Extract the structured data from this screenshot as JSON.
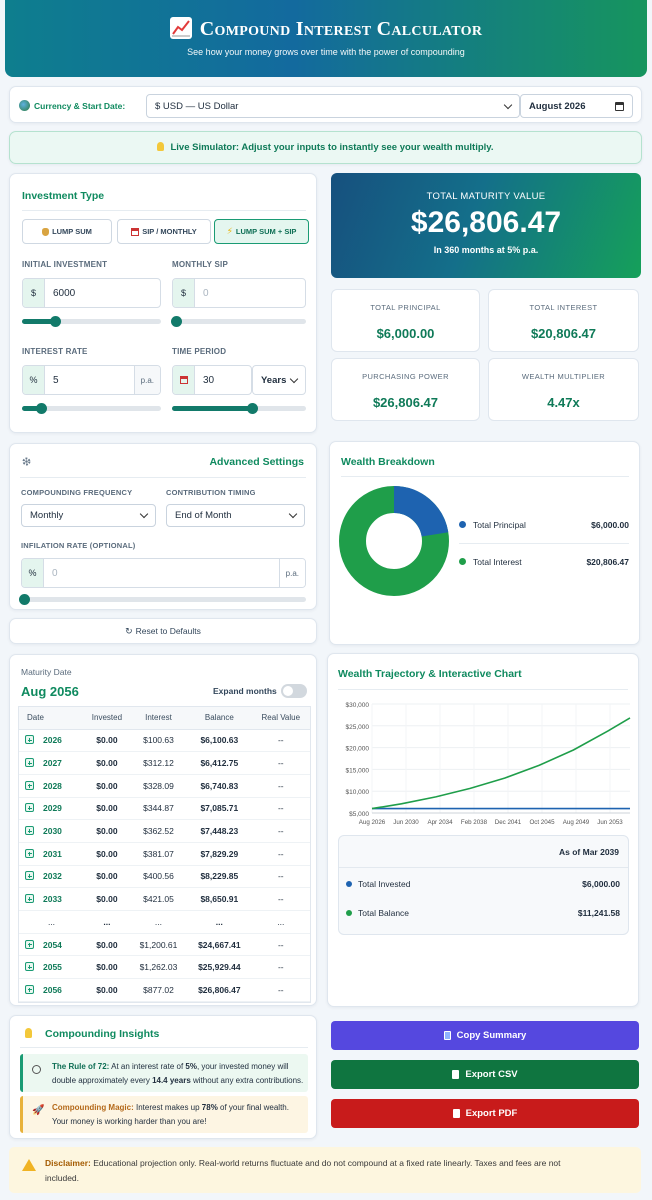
{
  "header": {
    "title": "Compound Interest Calculator",
    "subtitle": "See how your money grows over time with the power of compounding"
  },
  "settings_bar": {
    "label": "Currency & Start Date:",
    "currency": "$ USD — US Dollar",
    "start_date": "August 2026"
  },
  "banner": {
    "strong": "Live Simulator:",
    "text": " Adjust your inputs to instantly see your wealth multiply."
  },
  "investment": {
    "title": "Investment Type",
    "types": [
      {
        "label": "LUMP SUM"
      },
      {
        "label": "SIP / MONTHLY"
      },
      {
        "label": "LUMP SUM + SIP"
      }
    ],
    "initial_label": "INITIAL INVESTMENT",
    "initial_prefix": "$",
    "initial_value": "6000",
    "initial_slider": 0.24,
    "sip_label": "MONTHLY SIP",
    "sip_prefix": "$",
    "sip_placeholder": "0",
    "sip_slider": 0.03,
    "rate_label": "INTEREST RATE",
    "rate_prefix": "%",
    "rate_value": "5",
    "rate_suffix": "p.a.",
    "rate_slider": 0.14,
    "period_label": "TIME PERIOD",
    "period_value": "30",
    "period_unit": "Years",
    "period_slider": 0.6
  },
  "advanced": {
    "title": "Advanced Settings",
    "freq_label": "COMPOUNDING FREQUENCY",
    "freq_value": "Monthly",
    "timing_label": "CONTRIBUTION TIMING",
    "timing_value": "End of Month",
    "inflation_label": "INFILATION RATE (OPTIONAL)",
    "inflation_prefix": "%",
    "inflation_placeholder": "0",
    "inflation_suffix": "p.a.",
    "inflation_slider": 0.01
  },
  "reset_label": "Reset to Defaults",
  "maturity": {
    "label": "TOTAL MATURITY VALUE",
    "value": "$26,806.47",
    "sub": "In 360 months at 5% p.a."
  },
  "stats": [
    {
      "label": "TOTAL PRINCIPAL",
      "value": "$6,000.00"
    },
    {
      "label": "TOTAL INTEREST",
      "value": "$20,806.47"
    },
    {
      "label": "PURCHASING POWER",
      "value": "$26,806.47"
    },
    {
      "label": "WEALTH MULTIPLIER",
      "value": "4.47x"
    }
  ],
  "breakdown": {
    "title": "Wealth Breakdown",
    "items": [
      {
        "label": "Total Principal",
        "value": "$6,000.00",
        "color": "#1e63b0"
      },
      {
        "label": "Total Interest",
        "value": "$20,806.47",
        "color": "#1f9e4a"
      }
    ]
  },
  "schedule": {
    "maturity_label": "Maturity Date",
    "maturity_value": "Aug 2056",
    "expand_label": "Expand months",
    "columns": [
      "Date",
      "Invested",
      "Interest",
      "Balance",
      "Real Value"
    ],
    "rows": [
      [
        "2026",
        "$0.00",
        "$100.63",
        "$6,100.63",
        "--"
      ],
      [
        "2027",
        "$0.00",
        "$312.12",
        "$6,412.75",
        "--"
      ],
      [
        "2028",
        "$0.00",
        "$328.09",
        "$6,740.83",
        "--"
      ],
      [
        "2029",
        "$0.00",
        "$344.87",
        "$7,085.71",
        "--"
      ],
      [
        "2030",
        "$0.00",
        "$362.52",
        "$7,448.23",
        "--"
      ],
      [
        "2031",
        "$0.00",
        "$381.07",
        "$7,829.29",
        "--"
      ],
      [
        "2032",
        "$0.00",
        "$400.56",
        "$8,229.85",
        "--"
      ],
      [
        "2033",
        "$0.00",
        "$421.05",
        "$8,650.91",
        "--"
      ],
      [
        "...",
        "...",
        "...",
        "...",
        "..."
      ],
      [
        "2054",
        "$0.00",
        "$1,200.61",
        "$24,667.41",
        "--"
      ],
      [
        "2055",
        "$0.00",
        "$1,262.03",
        "$25,929.44",
        "--"
      ],
      [
        "2056",
        "$0.00",
        "$877.02",
        "$26,806.47",
        "--"
      ]
    ]
  },
  "trajectory": {
    "title": "Wealth Trajectory & Interactive Chart",
    "tooltip": {
      "date": "As of Mar 2039",
      "invested_label": "Total Invested",
      "invested_value": "$6,000.00",
      "balance_label": "Total Balance",
      "balance_value": "$11,241.58"
    }
  },
  "chart_data": {
    "type": "line",
    "x_ticks": [
      "Aug 2026",
      "Jun 2030",
      "Apr 2034",
      "Feb 2038",
      "Dec 2041",
      "Oct 2045",
      "Aug 2049",
      "Jun 2053"
    ],
    "y_ticks": [
      "$5,000",
      "$10,000",
      "$15,000",
      "$20,000",
      "$25,000",
      "$30,000"
    ],
    "ylim": [
      5000,
      30000
    ],
    "xlim": [
      2026.58,
      2056.58
    ],
    "series": [
      {
        "name": "Total Invested",
        "color": "#1e63b0",
        "x": [
          2026.58,
          2056.58
        ],
        "y": [
          6000,
          6000
        ]
      },
      {
        "name": "Total Balance",
        "color": "#1f9e4a",
        "x": [
          2026.58,
          2030,
          2034,
          2038,
          2042,
          2046,
          2050,
          2054,
          2056.58
        ],
        "y": [
          6000,
          7114,
          8700,
          10640,
          13010,
          15910,
          19450,
          23780,
          26806
        ]
      }
    ]
  },
  "insights": {
    "title": "Compounding Insights",
    "rule_strong": "The Rule of 72:",
    "rule_text1": " At an interest rate of ",
    "rule_rate": "5%",
    "rule_text2": ", your invested money will double approximately every ",
    "rule_years": "14.4 years",
    "rule_text3": " without any extra contributions.",
    "magic_strong": "Compounding Magic:",
    "magic_text1": " Interest makes up ",
    "magic_pct": "78%",
    "magic_text2": " of your final wealth. Your money is working harder than you are!"
  },
  "actions": {
    "copy": "Copy Summary",
    "csv": "Export CSV",
    "pdf": "Export PDF"
  },
  "disclaimer": {
    "strong": "Disclaimer:",
    "text": " Educational projection only. Real-world returns fluctuate and do not compound at a fixed rate linearly. Taxes and fees are not included."
  }
}
